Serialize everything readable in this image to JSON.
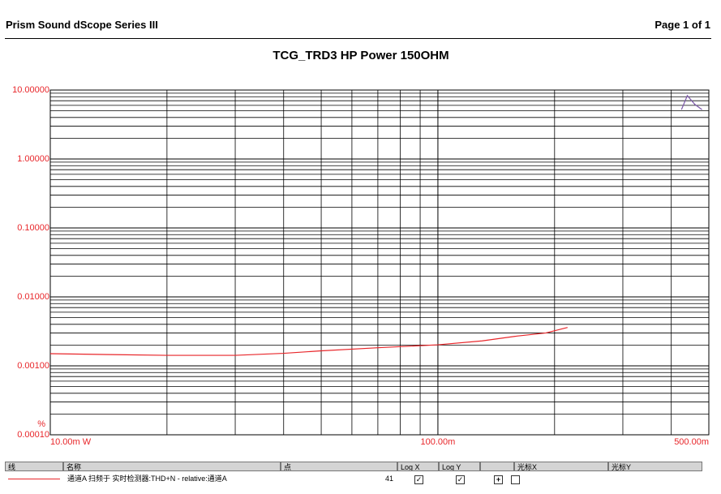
{
  "header": {
    "app": "Prism Sound dScope Series III",
    "page": "Page 1 of 1"
  },
  "chart_data": {
    "type": "line",
    "title": "TCG_TRD3 HP Power 150OHM",
    "y_unit": "%",
    "log_x": true,
    "log_y": true,
    "grid": true,
    "minor_grid": true,
    "xlim": [
      0.01,
      0.5
    ],
    "ylim": [
      0.0001,
      10
    ],
    "xticks": [
      {
        "value": 0.01,
        "label": "10.00m W"
      },
      {
        "value": 0.1,
        "label": "100.00m"
      },
      {
        "value": 0.5,
        "label": "500.00m"
      }
    ],
    "yticks": [
      {
        "value": 10,
        "label": "10.00000"
      },
      {
        "value": 1,
        "label": "1.00000"
      },
      {
        "value": 0.1,
        "label": "0.10000"
      },
      {
        "value": 0.01,
        "label": "0.01000"
      },
      {
        "value": 0.001,
        "label": "0.00100"
      },
      {
        "value": 0.0001,
        "label": "0.00010"
      }
    ],
    "series": [
      {
        "name": "通道A 扫频于 实时检测器:THD+N - relative:通道A",
        "color": "#e8262a",
        "x": [
          0.01,
          0.015,
          0.02,
          0.03,
          0.04,
          0.05,
          0.07,
          0.1,
          0.13,
          0.16,
          0.19,
          0.216
        ],
        "values": [
          0.0015,
          0.00145,
          0.00142,
          0.00142,
          0.00152,
          0.00165,
          0.00183,
          0.00202,
          0.0023,
          0.0027,
          0.003,
          0.0036
        ]
      },
      {
        "color": "#7b57a8",
        "x": [
          0.425,
          0.44,
          0.46,
          0.48
        ],
        "values": [
          5.2,
          8.3,
          6.2,
          5.2
        ]
      }
    ],
    "legend_table": {
      "columns": [
        "线",
        "名称",
        "点",
        "Log X",
        "Log Y",
        "光标X",
        "光标Y"
      ],
      "points": 41
    }
  }
}
